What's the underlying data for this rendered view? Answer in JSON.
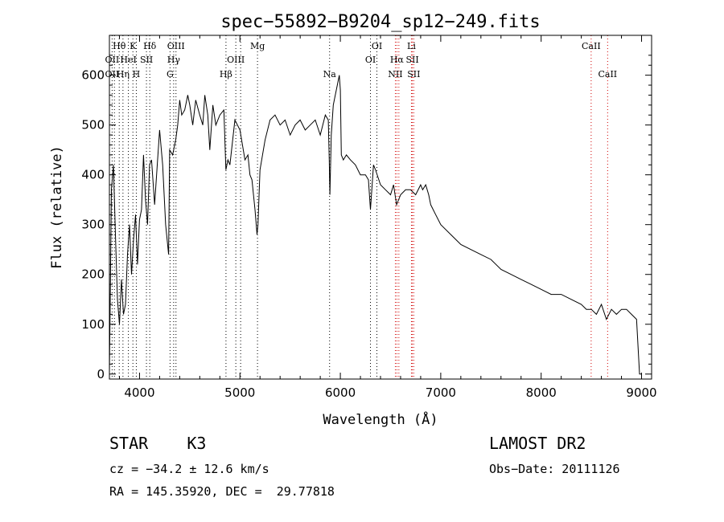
{
  "chart_data": {
    "type": "line",
    "title": "spec−55892−B9204_sp12−249.fits",
    "xlabel": "Wavelength (Å)",
    "ylabel": "Flux (relative)",
    "xlim": [
      3700,
      9100
    ],
    "ylim": [
      -10,
      680
    ],
    "x_ticks": [
      4000,
      5000,
      6000,
      7000,
      8000,
      9000
    ],
    "y_ticks": [
      0,
      100,
      200,
      300,
      400,
      500,
      600
    ],
    "grid": false,
    "series": [
      {
        "x": [
          3700,
          3720,
          3740,
          3760,
          3780,
          3800,
          3820,
          3840,
          3860,
          3880,
          3900,
          3920,
          3940,
          3960,
          3980,
          4000,
          4020,
          4040,
          4060,
          4080,
          4100,
          4120,
          4150,
          4180,
          4200,
          4230,
          4260,
          4290,
          4300,
          4330,
          4360,
          4380,
          4400,
          4420,
          4450,
          4480,
          4500,
          4530,
          4560,
          4600,
          4630,
          4650,
          4680,
          4700,
          4730,
          4760,
          4800,
          4840,
          4860,
          4880,
          4900,
          4950,
          5000,
          5050,
          5080,
          5100,
          5120,
          5150,
          5170,
          5180,
          5200,
          5250,
          5300,
          5350,
          5400,
          5450,
          5500,
          5550,
          5600,
          5650,
          5700,
          5750,
          5800,
          5850,
          5880,
          5890,
          5896,
          5910,
          5930,
          5950,
          5970,
          5990,
          6000,
          6010,
          6030,
          6060,
          6100,
          6150,
          6200,
          6250,
          6280,
          6300,
          6330,
          6350,
          6400,
          6450,
          6500,
          6530,
          6560,
          6600,
          6650,
          6700,
          6750,
          6800,
          6820,
          6850,
          6880,
          6900,
          6950,
          7000,
          7100,
          7200,
          7300,
          7400,
          7500,
          7600,
          7700,
          7800,
          7900,
          8000,
          8100,
          8200,
          8300,
          8400,
          8450,
          8500,
          8550,
          8600,
          8650,
          8700,
          8750,
          8800,
          8850,
          8900,
          8950,
          8980,
          9000
        ],
        "y": [
          0,
          370,
          420,
          280,
          150,
          100,
          190,
          120,
          140,
          240,
          300,
          200,
          270,
          320,
          220,
          310,
          330,
          440,
          350,
          300,
          420,
          430,
          340,
          430,
          490,
          420,
          300,
          240,
          450,
          440,
          470,
          500,
          550,
          520,
          530,
          560,
          540,
          500,
          550,
          520,
          500,
          560,
          520,
          450,
          540,
          500,
          520,
          530,
          410,
          430,
          420,
          510,
          490,
          430,
          440,
          400,
          390,
          330,
          280,
          300,
          410,
          470,
          510,
          520,
          500,
          510,
          480,
          500,
          510,
          490,
          500,
          510,
          480,
          520,
          510,
          430,
          360,
          480,
          540,
          560,
          580,
          600,
          570,
          440,
          430,
          440,
          430,
          420,
          400,
          400,
          390,
          330,
          420,
          410,
          380,
          370,
          360,
          380,
          340,
          360,
          370,
          370,
          360,
          380,
          370,
          380,
          360,
          340,
          320,
          300,
          280,
          260,
          250,
          240,
          230,
          210,
          200,
          190,
          180,
          170,
          160,
          160,
          150,
          140,
          130,
          130,
          120,
          140,
          110,
          130,
          120,
          130,
          130,
          120,
          110,
          0,
          0
        ]
      }
    ],
    "annotations": [
      {
        "text": "Hθ",
        "x": 3798,
        "row": 1
      },
      {
        "text": "K",
        "x": 3934,
        "row": 1
      },
      {
        "text": "Hδ",
        "x": 4102,
        "row": 1
      },
      {
        "text": "OIII",
        "x": 4363,
        "row": 1
      },
      {
        "text": "Mg",
        "x": 5175,
        "row": 1
      },
      {
        "text": "OI",
        "x": 6364,
        "row": 1
      },
      {
        "text": "Li",
        "x": 6708,
        "row": 1
      },
      {
        "text": "CaII",
        "x": 8498,
        "row": 1
      },
      {
        "text": "OII",
        "x": 3727,
        "row": 2
      },
      {
        "text": "HeI",
        "x": 3889,
        "row": 2
      },
      {
        "text": "SII",
        "x": 4069,
        "row": 2
      },
      {
        "text": "Hγ",
        "x": 4340,
        "row": 2
      },
      {
        "text": "OIII",
        "x": 4959,
        "row": 2
      },
      {
        "text": "OI",
        "x": 6300,
        "row": 2
      },
      {
        "text": "Hα",
        "x": 6563,
        "row": 2
      },
      {
        "text": "SII",
        "x": 6717,
        "row": 2
      },
      {
        "text": "OII",
        "x": 3727,
        "row": 3
      },
      {
        "text": "Hη",
        "x": 3835,
        "row": 3
      },
      {
        "text": "H",
        "x": 3968,
        "row": 3
      },
      {
        "text": "G",
        "x": 4304,
        "row": 3
      },
      {
        "text": "Hβ",
        "x": 4861,
        "row": 3
      },
      {
        "text": "Na",
        "x": 5893,
        "row": 3
      },
      {
        "text": "NII",
        "x": 6548,
        "row": 3
      },
      {
        "text": "SII",
        "x": 6731,
        "row": 3
      },
      {
        "text": "CaII",
        "x": 8662,
        "row": 3
      }
    ],
    "line_markers": {
      "black_dotted": [
        3727,
        3750,
        3798,
        3835,
        3889,
        3934,
        3968,
        4069,
        4102,
        4304,
        4340,
        4363,
        4861,
        4959,
        5007,
        5175,
        5893,
        6300,
        6364
      ],
      "red_dotted": [
        6548,
        6563,
        6583,
        6708,
        6717,
        6731,
        8498,
        8662
      ]
    },
    "colors": {
      "line": "#000000",
      "marker_black": "#000000",
      "marker_red": "#d00000"
    }
  },
  "footer": {
    "object": "STAR    K3",
    "survey": "LAMOST DR2",
    "cz": "cz = −34.2 ± 12.6 km/s",
    "obs_date": "Obs−Date: 20111126",
    "radec": "RA = 145.35920, DEC =  29.77818"
  }
}
